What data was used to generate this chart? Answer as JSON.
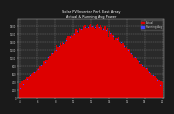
{
  "title": "Solar PV/Inverter Performance East Array",
  "subtitle": "Actual & Running Average Power Output",
  "bg_color": "#1a1a1a",
  "plot_bg_color": "#2a2a2a",
  "bar_color": "#dd0000",
  "avg_color": "#4444ff",
  "grid_color": "#ffffff",
  "text_color": "#cccccc",
  "title_color": "#ffffff",
  "legend_actual": "Actual",
  "legend_avg": "Running Avg",
  "num_points": 120,
  "peak": 1.0,
  "ylim": [
    0,
    1.1
  ],
  "xlabel_color": "#aaaaaa",
  "ylabel_color": "#aaaaaa"
}
